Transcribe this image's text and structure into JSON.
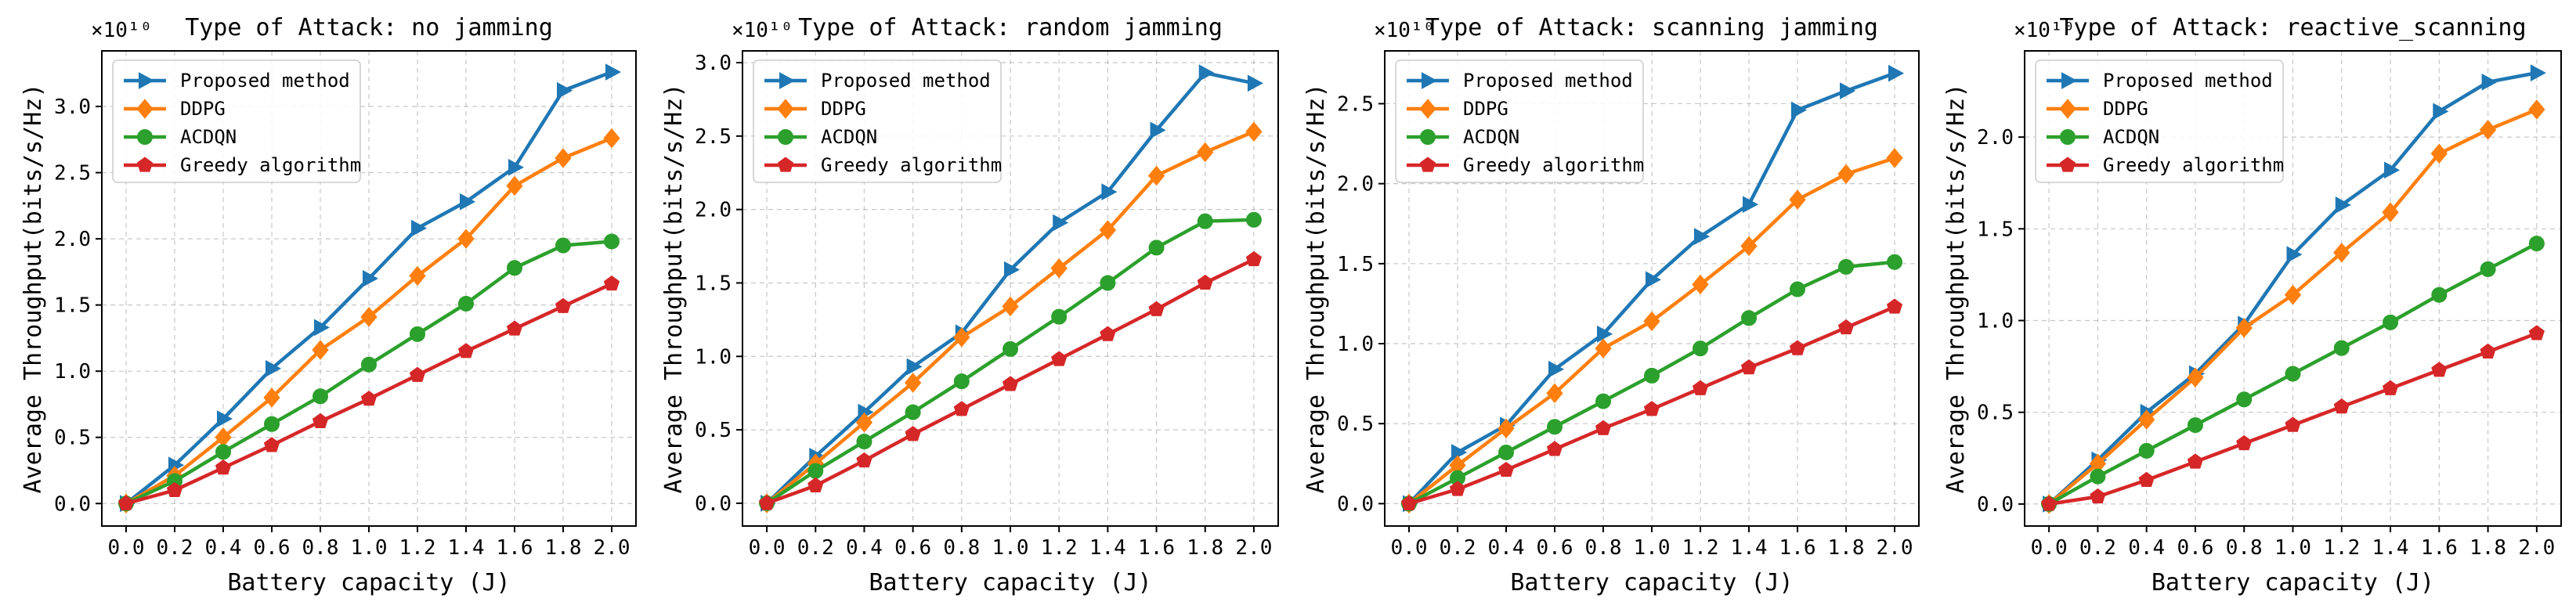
{
  "chart_data": [
    {
      "type": "line",
      "title": "Type of Attack: no jamming",
      "xlabel": "Battery capacity (J)",
      "ylabel": "Average Throughput(bits/s/Hz)",
      "y_scale_label": "×10¹⁰",
      "x": [
        0.0,
        0.2,
        0.4,
        0.6,
        0.8,
        1.0,
        1.2,
        1.4,
        1.6,
        1.8,
        2.0
      ],
      "x_tick_labels": [
        "0.0",
        "0.2",
        "0.4",
        "0.6",
        "0.8",
        "1.0",
        "1.2",
        "1.4",
        "1.6",
        "1.8",
        "2.0"
      ],
      "xlim": [
        -0.1,
        2.1
      ],
      "ylim": [
        -0.17,
        3.42
      ],
      "y_ticks": [
        0.0,
        0.5,
        1.0,
        1.5,
        2.0,
        2.5,
        3.0
      ],
      "y_tick_labels": [
        "0.0",
        "0.5",
        "1.0",
        "1.5",
        "2.0",
        "2.5",
        "3.0"
      ],
      "grid": true,
      "legend_position": "top-left",
      "series": [
        {
          "name": "Proposed method",
          "values": [
            0.0,
            0.29,
            0.64,
            1.02,
            1.33,
            1.7,
            2.08,
            2.28,
            2.54,
            3.12,
            3.26
          ]
        },
        {
          "name": "DDPG",
          "values": [
            0.0,
            0.21,
            0.5,
            0.8,
            1.16,
            1.41,
            1.72,
            2.0,
            2.4,
            2.61,
            2.76
          ]
        },
        {
          "name": "ACDQN",
          "values": [
            0.0,
            0.17,
            0.39,
            0.6,
            0.81,
            1.05,
            1.28,
            1.51,
            1.78,
            1.95,
            1.98
          ]
        },
        {
          "name": "Greedy algorithm",
          "values": [
            0.0,
            0.1,
            0.27,
            0.44,
            0.62,
            0.79,
            0.97,
            1.15,
            1.32,
            1.49,
            1.66
          ]
        }
      ]
    },
    {
      "type": "line",
      "title": "Type of Attack: random jamming",
      "xlabel": "Battery capacity (J)",
      "ylabel": "Average Throughput(bits/s/Hz)",
      "y_scale_label": "×10¹⁰",
      "x": [
        0.0,
        0.2,
        0.4,
        0.6,
        0.8,
        1.0,
        1.2,
        1.4,
        1.6,
        1.8,
        2.0
      ],
      "x_tick_labels": [
        "0.0",
        "0.2",
        "0.4",
        "0.6",
        "0.8",
        "1.0",
        "1.2",
        "1.4",
        "1.6",
        "1.8",
        "2.0"
      ],
      "xlim": [
        -0.1,
        2.1
      ],
      "ylim": [
        -0.155,
        3.08
      ],
      "y_ticks": [
        0.0,
        0.5,
        1.0,
        1.5,
        2.0,
        2.5,
        3.0
      ],
      "y_tick_labels": [
        "0.0",
        "0.5",
        "1.0",
        "1.5",
        "2.0",
        "2.5",
        "3.0"
      ],
      "grid": true,
      "legend_position": "top-left",
      "series": [
        {
          "name": "Proposed method",
          "values": [
            0.0,
            0.32,
            0.62,
            0.93,
            1.16,
            1.59,
            1.91,
            2.12,
            2.54,
            2.93,
            2.86
          ]
        },
        {
          "name": "DDPG",
          "values": [
            0.0,
            0.27,
            0.55,
            0.82,
            1.13,
            1.34,
            1.6,
            1.86,
            2.23,
            2.39,
            2.53
          ]
        },
        {
          "name": "ACDQN",
          "values": [
            0.0,
            0.22,
            0.42,
            0.62,
            0.83,
            1.05,
            1.27,
            1.5,
            1.74,
            1.92,
            1.93
          ]
        },
        {
          "name": "Greedy algorithm",
          "values": [
            0.0,
            0.12,
            0.29,
            0.47,
            0.64,
            0.81,
            0.98,
            1.15,
            1.32,
            1.5,
            1.66
          ]
        }
      ]
    },
    {
      "type": "line",
      "title": "Type of Attack: scanning jamming",
      "xlabel": "Battery capacity (J)",
      "ylabel": "Average Throughput(bits/s/Hz)",
      "y_scale_label": "×10¹⁰",
      "x": [
        0.0,
        0.2,
        0.4,
        0.6,
        0.8,
        1.0,
        1.2,
        1.4,
        1.6,
        1.8,
        2.0
      ],
      "x_tick_labels": [
        "0.0",
        "0.2",
        "0.4",
        "0.6",
        "0.8",
        "1.0",
        "1.2",
        "1.4",
        "1.6",
        "1.8",
        "2.0"
      ],
      "xlim": [
        -0.1,
        2.1
      ],
      "ylim": [
        -0.14,
        2.83
      ],
      "y_ticks": [
        0.0,
        0.5,
        1.0,
        1.5,
        2.0,
        2.5
      ],
      "y_tick_labels": [
        "0.0",
        "0.5",
        "1.0",
        "1.5",
        "2.0",
        "2.5"
      ],
      "grid": true,
      "legend_position": "top-left",
      "series": [
        {
          "name": "Proposed method",
          "values": [
            0.0,
            0.32,
            0.49,
            0.84,
            1.06,
            1.4,
            1.67,
            1.87,
            2.46,
            2.58,
            2.69
          ]
        },
        {
          "name": "DDPG",
          "values": [
            0.0,
            0.24,
            0.47,
            0.69,
            0.97,
            1.14,
            1.37,
            1.61,
            1.9,
            2.06,
            2.16
          ]
        },
        {
          "name": "ACDQN",
          "values": [
            0.0,
            0.16,
            0.32,
            0.48,
            0.64,
            0.8,
            0.97,
            1.16,
            1.34,
            1.48,
            1.51
          ]
        },
        {
          "name": "Greedy algorithm",
          "values": [
            0.0,
            0.09,
            0.21,
            0.34,
            0.47,
            0.59,
            0.72,
            0.85,
            0.97,
            1.1,
            1.23
          ]
        }
      ]
    },
    {
      "type": "line",
      "title": "Type of Attack: reactive_scanning",
      "xlabel": "Battery capacity (J)",
      "ylabel": "Average Throughput(bits/s/Hz)",
      "y_scale_label": "×10¹⁰",
      "x": [
        0.0,
        0.2,
        0.4,
        0.6,
        0.8,
        1.0,
        1.2,
        1.4,
        1.6,
        1.8,
        2.0
      ],
      "x_tick_labels": [
        "0.0",
        "0.2",
        "0.4",
        "0.6",
        "0.8",
        "1.0",
        "1.2",
        "1.4",
        "1.6",
        "1.8",
        "2.0"
      ],
      "xlim": [
        -0.1,
        2.1
      ],
      "ylim": [
        -0.12,
        2.47
      ],
      "y_ticks": [
        0.0,
        0.5,
        1.0,
        1.5,
        2.0
      ],
      "y_tick_labels": [
        "0.0",
        "0.5",
        "1.0",
        "1.5",
        "2.0"
      ],
      "grid": true,
      "legend_position": "top-left",
      "series": [
        {
          "name": "Proposed method",
          "values": [
            0.0,
            0.24,
            0.5,
            0.71,
            0.98,
            1.36,
            1.63,
            1.82,
            2.14,
            2.3,
            2.35
          ]
        },
        {
          "name": "DDPG",
          "values": [
            0.0,
            0.22,
            0.46,
            0.69,
            0.96,
            1.14,
            1.37,
            1.59,
            1.91,
            2.04,
            2.15
          ]
        },
        {
          "name": "ACDQN",
          "values": [
            0.0,
            0.15,
            0.29,
            0.43,
            0.57,
            0.71,
            0.85,
            0.99,
            1.14,
            1.28,
            1.42
          ]
        },
        {
          "name": "Greedy algorithm",
          "values": [
            0.0,
            0.04,
            0.13,
            0.23,
            0.33,
            0.43,
            0.53,
            0.63,
            0.73,
            0.83,
            0.93
          ]
        }
      ]
    }
  ],
  "series_styles": [
    {
      "color": "#1f77b4",
      "marker": "triangle-right"
    },
    {
      "color": "#ff7f0e",
      "marker": "diamond"
    },
    {
      "color": "#2ca02c",
      "marker": "circle"
    },
    {
      "color": "#d62728",
      "marker": "pentagon"
    }
  ],
  "colors": {
    "grid": "#b0b0b0",
    "axes": "#000000",
    "background": "#ffffff"
  }
}
